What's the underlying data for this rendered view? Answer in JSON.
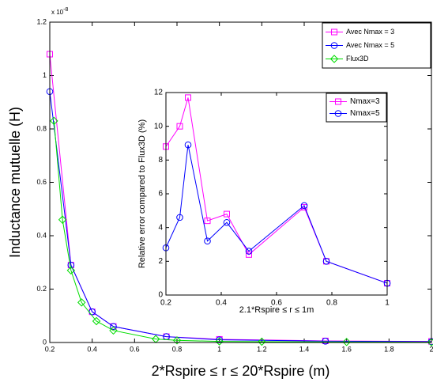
{
  "chart_data": [
    {
      "type": "line",
      "xlabel": "2*Rspire ≤ r ≤ 20*Rspire (m)",
      "ylabel": "Inductance mutuelle (H)",
      "y_multiplier": {
        "base": "x 10",
        "exponent": "-8"
      },
      "xlim": [
        0.2,
        2
      ],
      "ylim": [
        0,
        1.2
      ],
      "xticks": [
        0.2,
        0.4,
        0.6,
        0.8,
        1,
        1.2,
        1.4,
        1.6,
        1.8,
        2
      ],
      "yticks": [
        0,
        0.2,
        0.4,
        0.6,
        0.8,
        1,
        1.2
      ],
      "legend": "upper right",
      "series": [
        {
          "name": "Avec Nmax = 3",
          "color": "#ff00ff",
          "marker": "square",
          "x": [
            0.2,
            0.3,
            0.4,
            0.5,
            0.75,
            1,
            1.5,
            2
          ],
          "values": [
            1.08,
            0.29,
            0.115,
            0.06,
            0.022,
            0.012,
            0.006,
            0.004
          ]
        },
        {
          "name": "Avec Nmax = 5",
          "color": "#0000ff",
          "marker": "circle",
          "x": [
            0.2,
            0.3,
            0.4,
            0.5,
            0.75,
            1,
            1.5,
            2
          ],
          "values": [
            0.94,
            0.29,
            0.115,
            0.06,
            0.022,
            0.01,
            0.005,
            0.003
          ]
        },
        {
          "name": "Flux3D",
          "color": "#00dd00",
          "marker": "diamond",
          "x": [
            0.22,
            0.26,
            0.3,
            0.35,
            0.42,
            0.5,
            0.7,
            0.8,
            1,
            1.2,
            1.6,
            2
          ],
          "values": [
            0.83,
            0.46,
            0.27,
            0.15,
            0.08,
            0.045,
            0.013,
            0.008,
            0.004,
            0.003,
            0.002,
            0.001
          ]
        }
      ]
    },
    {
      "type": "line",
      "xlabel": "2.1*Rspire ≤ r ≤ 1m",
      "ylabel": "Relative error compared to Flux3D (%)",
      "xlim": [
        0.2,
        1
      ],
      "ylim": [
        0,
        12
      ],
      "xticks": [
        0.2,
        0.4,
        0.6,
        0.8,
        1
      ],
      "yticks": [
        0,
        2,
        4,
        6,
        8,
        10,
        12
      ],
      "legend": "upper right",
      "series": [
        {
          "name": "Nmax=3",
          "color": "#ff00ff",
          "marker": "square",
          "x": [
            0.2,
            0.25,
            0.28,
            0.35,
            0.42,
            0.5,
            0.7,
            0.78,
            1
          ],
          "values": [
            8.8,
            10,
            11.7,
            4.4,
            4.8,
            2.4,
            5.2,
            2.0,
            0.7
          ]
        },
        {
          "name": "Nmax=5",
          "color": "#0000ff",
          "marker": "circle",
          "x": [
            0.2,
            0.25,
            0.28,
            0.35,
            0.42,
            0.5,
            0.7,
            0.78,
            1
          ],
          "values": [
            2.8,
            4.6,
            8.9,
            3.2,
            4.3,
            2.6,
            5.3,
            2.0,
            0.7
          ]
        }
      ]
    }
  ]
}
